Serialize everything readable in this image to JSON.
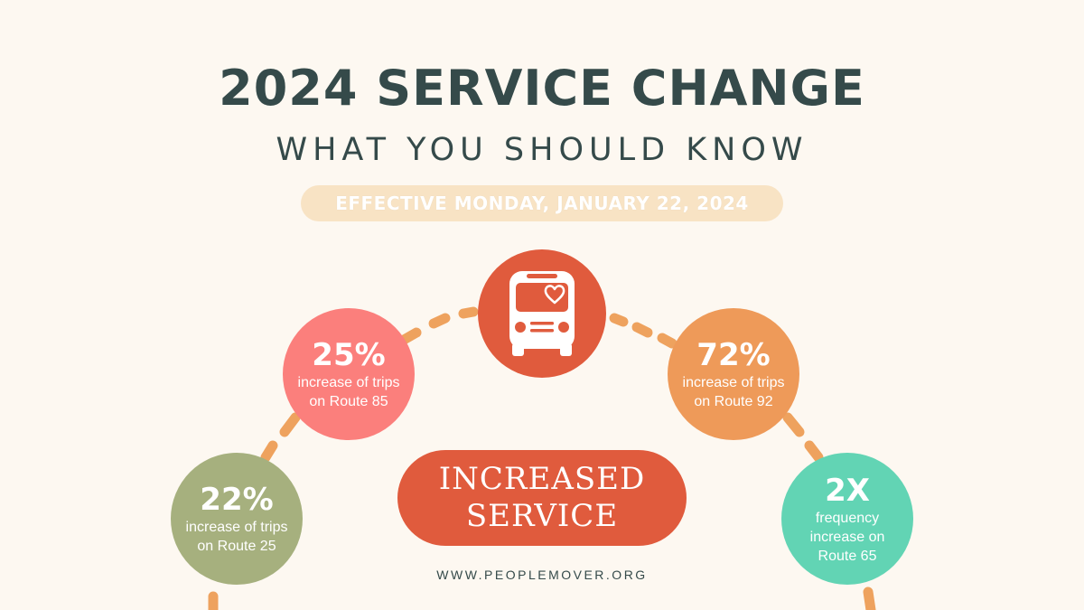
{
  "title": "2024 SERVICE CHANGE",
  "subtitle": "WHAT YOU SHOULD KNOW",
  "effective": "EFFECTIVE MONDAY, JANUARY 22, 2024",
  "bus_icon": "bus-heart-icon",
  "stats": [
    {
      "value": "25%",
      "line1": "increase of trips",
      "line2": "on Route 85"
    },
    {
      "value": "72%",
      "line1": "increase of trips",
      "line2": "on Route 92"
    },
    {
      "value": "22%",
      "line1": "increase of trips",
      "line2": "on Route 25"
    },
    {
      "value": "2X",
      "line1": "frequency",
      "line2": "increase on",
      "line3": "Route 65"
    }
  ],
  "banner": {
    "line1": "INCREASED",
    "line2": "SERVICE"
  },
  "website": "WWW.PEOPLEMOVER.ORG",
  "colors": {
    "background": "#fdf8f1",
    "title": "#354a4a",
    "accent_red": "#e05b3d",
    "pink": "#fb7f7c",
    "orange": "#ee9a59",
    "olive": "#a6b07e",
    "teal": "#62d4b4",
    "pill": "#f8e3c4",
    "dash": "#eea25e"
  }
}
